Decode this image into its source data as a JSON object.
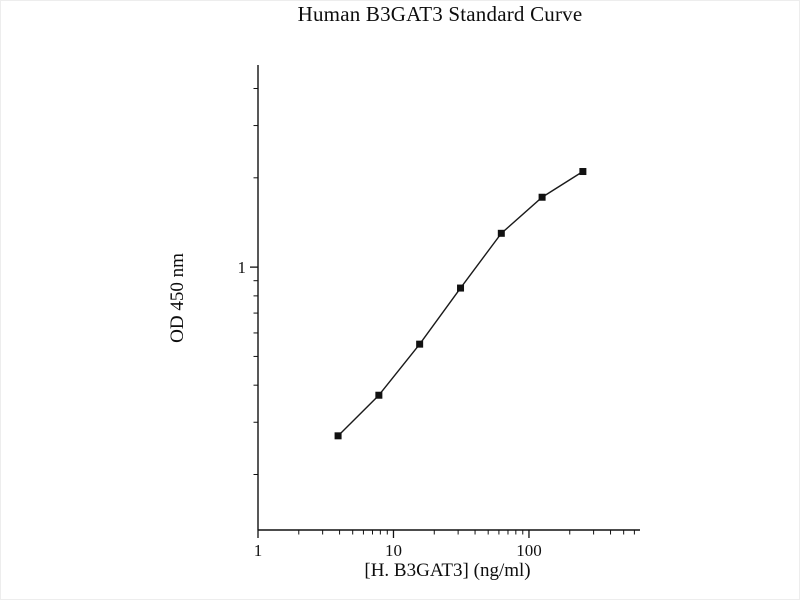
{
  "page": {
    "background": "#ffffff"
  },
  "chart_data": {
    "type": "line",
    "title": "Human B3GAT3 Standard Curve",
    "xlabel": "[H. B3GAT3] (ng/ml)",
    "ylabel": "OD 450 nm",
    "x_scale": "log",
    "y_scale": "log",
    "xlim": [
      1,
      660
    ],
    "ylim": [
      0.13,
      4.8
    ],
    "x": [
      3.9,
      7.8,
      15.6,
      31.25,
      62.5,
      125,
      250
    ],
    "y": [
      0.27,
      0.37,
      0.55,
      0.85,
      1.3,
      1.72,
      2.1
    ],
    "x_major_ticks": [
      1,
      10,
      100
    ],
    "x_tick_labels": [
      "1",
      "10",
      "100"
    ],
    "y_major_ticks": [
      1
    ],
    "y_tick_labels": [
      "1"
    ],
    "x_minor_ticks": [
      2,
      3,
      4,
      5,
      6,
      7,
      8,
      9,
      20,
      30,
      40,
      50,
      60,
      70,
      80,
      90,
      200,
      300,
      400,
      500,
      600
    ],
    "y_minor_ticks": [
      0.2,
      0.3,
      0.4,
      0.5,
      0.6,
      0.7,
      0.8,
      0.9,
      2,
      3,
      4
    ],
    "marker": "square",
    "line_color": "#1a1a1a",
    "marker_color": "#111111",
    "axis_color": "#111111",
    "grid": false,
    "legend": null
  }
}
